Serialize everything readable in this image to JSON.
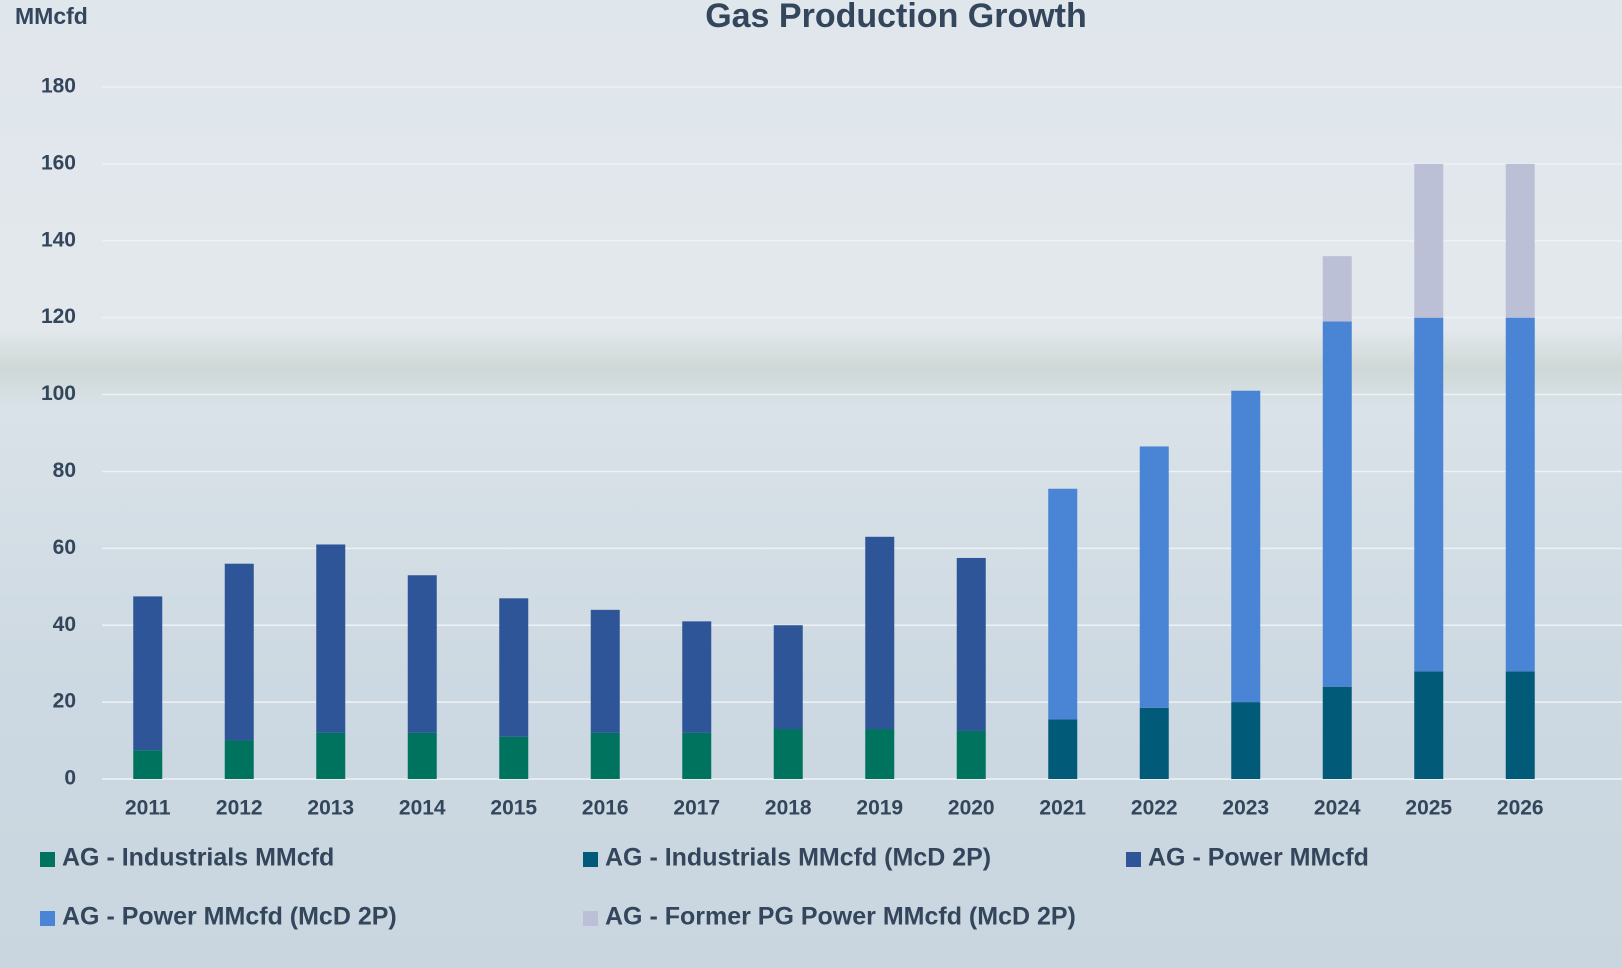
{
  "chart_data": {
    "type": "stacked_bar",
    "title": "Gas Production Growth",
    "y_label": "MMcfd",
    "categories": [
      "2011",
      "2012",
      "2013",
      "2014",
      "2015",
      "2016",
      "2017",
      "2018",
      "2019",
      "2020",
      "2021",
      "2022",
      "2023",
      "2024",
      "2025",
      "2026"
    ],
    "series": [
      {
        "name": "AG - Industrials MMcfd",
        "color": "#00735f",
        "values": [
          7.5,
          10,
          12,
          12,
          11,
          12,
          12,
          13,
          13,
          12.5,
          null,
          null,
          null,
          null,
          null,
          null
        ]
      },
      {
        "name": "AG - Industrials MMcfd (McD 2P)",
        "color": "#005a78",
        "values": [
          null,
          null,
          null,
          null,
          null,
          null,
          null,
          null,
          null,
          null,
          15.5,
          18.5,
          20,
          24,
          28,
          28
        ]
      },
      {
        "name": "AG - Power MMcfd",
        "color": "#2e5597",
        "values": [
          40,
          46,
          49,
          41,
          36,
          32,
          29,
          27,
          50,
          45,
          null,
          null,
          null,
          null,
          null,
          null
        ]
      },
      {
        "name": "AG - Power MMcfd (McD 2P)",
        "color": "#4a84d4",
        "values": [
          null,
          null,
          null,
          null,
          null,
          null,
          null,
          null,
          null,
          null,
          60,
          68,
          81,
          95,
          92,
          92
        ]
      },
      {
        "name": "AG - Former PG Power MMcfd (McD 2P)",
        "color": "#bcc0d6",
        "values": [
          null,
          null,
          null,
          null,
          null,
          null,
          null,
          null,
          null,
          null,
          null,
          null,
          null,
          17,
          40,
          40
        ]
      }
    ],
    "ylim": [
      0,
      180
    ],
    "yticks": [
      0,
      20,
      40,
      60,
      80,
      100,
      120,
      140,
      160,
      180
    ],
    "grid": true
  }
}
